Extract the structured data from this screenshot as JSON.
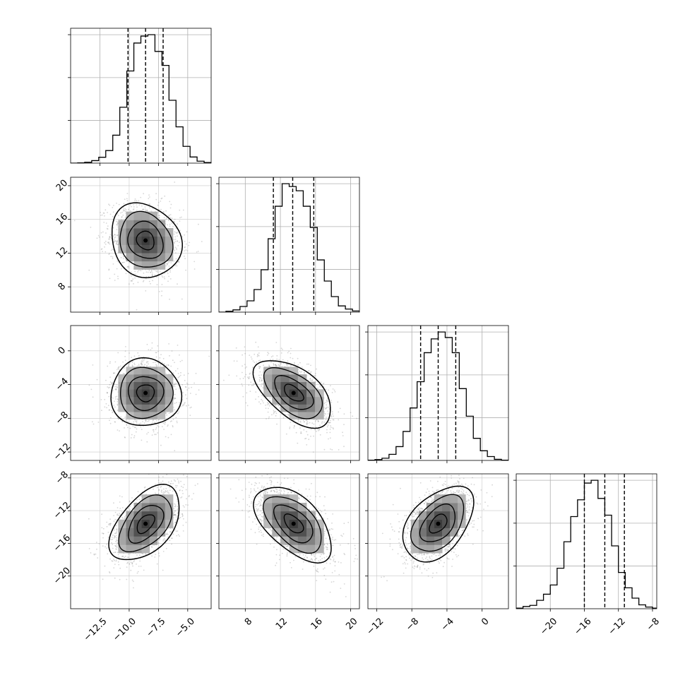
{
  "chart_data": {
    "type": "corner",
    "grid": true,
    "parameters": [
      {
        "axis_range": [
          -15.0,
          -3.0
        ],
        "ticks": [
          "−12.5",
          "−10.0",
          "−7.5",
          "−5.0"
        ],
        "tick_values": [
          -12.5,
          -10.0,
          -7.5,
          -5.0
        ],
        "quantiles": [
          -10.1,
          -8.6,
          -7.1
        ],
        "center": -8.6,
        "sigma": 1.5
      },
      {
        "axis_range": [
          5.0,
          21.0
        ],
        "ticks": [
          "8",
          "12",
          "16",
          "20"
        ],
        "tick_values": [
          8,
          12,
          16,
          20
        ],
        "quantiles": [
          11.2,
          13.4,
          15.8
        ],
        "center": 13.5,
        "sigma": 2.2
      },
      {
        "axis_range": [
          -13.0,
          3.0
        ],
        "ticks": [
          "−12",
          "−8",
          "−4",
          "0"
        ],
        "tick_values": [
          -12,
          -8,
          -4,
          0
        ],
        "quantiles": [
          -7.0,
          -5.0,
          -3.0
        ],
        "center": -5.0,
        "sigma": 2.0
      },
      {
        "axis_range": [
          -24.0,
          -7.5
        ],
        "ticks": [
          "−20",
          "−16",
          "−12",
          "−8"
        ],
        "tick_values": [
          -20,
          -16,
          -12,
          -8
        ],
        "quantiles": [
          -16.0,
          -13.6,
          -11.3
        ],
        "center": -13.6,
        "sigma": 2.3
      }
    ],
    "correlations": [
      [
        1,
        -0.15,
        0.0,
        0.5
      ],
      [
        -0.15,
        1,
        -0.55,
        -0.55
      ],
      [
        0.0,
        -0.55,
        1,
        0.45
      ],
      [
        0.5,
        -0.55,
        0.45,
        1
      ]
    ],
    "histograms": [
      {
        "param": 0,
        "edges": [
          -15.0,
          -14.4,
          -13.8,
          -13.2,
          -12.6,
          -12.0,
          -11.4,
          -10.8,
          -10.2,
          -9.6,
          -9.0,
          -8.4,
          -7.8,
          -7.2,
          -6.6,
          -6.0,
          -5.4,
          -4.8,
          -4.2,
          -3.6,
          -3.0
        ],
        "counts": [
          0,
          1,
          3,
          9,
          21,
          45,
          100,
          200,
          330,
          430,
          455,
          460,
          400,
          350,
          225,
          130,
          60,
          22,
          7,
          2
        ]
      },
      {
        "param": 1,
        "edges": [
          5.0,
          5.8,
          6.6,
          7.4,
          8.2,
          9.0,
          9.8,
          10.6,
          11.4,
          12.2,
          13.0,
          13.8,
          14.6,
          15.4,
          16.2,
          17.0,
          17.8,
          18.6,
          19.4,
          20.2,
          21.0
        ],
        "counts": [
          0,
          3,
          8,
          20,
          40,
          80,
          150,
          260,
          375,
          455,
          445,
          430,
          375,
          300,
          185,
          110,
          55,
          22,
          11,
          4
        ]
      },
      {
        "param": 2,
        "edges": [
          -13.0,
          -12.2,
          -11.4,
          -10.6,
          -9.8,
          -9.0,
          -8.2,
          -7.4,
          -6.6,
          -5.8,
          -5.0,
          -4.2,
          -3.4,
          -2.6,
          -1.8,
          -1.0,
          -0.2,
          0.6,
          1.4,
          2.2,
          3.0
        ],
        "counts": [
          1,
          3,
          8,
          22,
          50,
          105,
          190,
          285,
          390,
          440,
          465,
          445,
          390,
          260,
          160,
          80,
          35,
          14,
          4,
          1
        ]
      },
      {
        "param": 3,
        "edges": [
          -24.0,
          -23.2,
          -22.4,
          -21.6,
          -20.8,
          -20.0,
          -19.2,
          -18.4,
          -17.6,
          -16.8,
          -16.0,
          -15.2,
          -14.4,
          -13.6,
          -12.8,
          -12.0,
          -11.2,
          -10.4,
          -9.6,
          -8.8,
          -8.0,
          -7.5
        ],
        "counts": [
          2,
          8,
          12,
          30,
          52,
          85,
          145,
          240,
          330,
          390,
          450,
          460,
          395,
          335,
          225,
          130,
          75,
          38,
          14,
          6,
          2
        ]
      }
    ]
  }
}
